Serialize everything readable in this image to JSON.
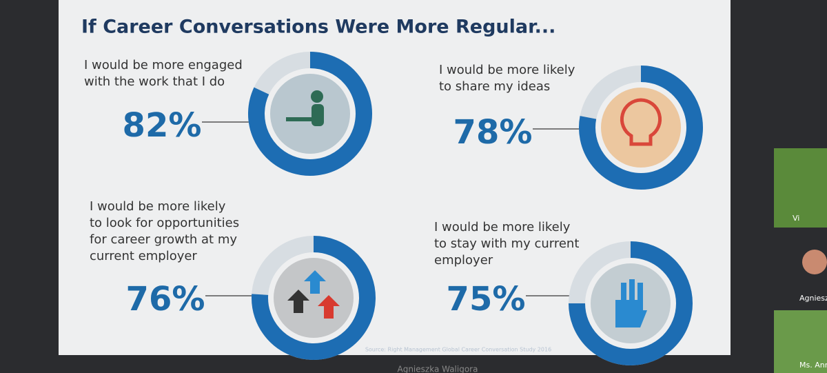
{
  "slide": {
    "title": "If Career Conversations Were More Regular...",
    "items": [
      {
        "lines": [
          "I would be more engaged",
          "with the work that I do"
        ],
        "percent": {
          "value": 82,
          "label": "82%"
        }
      },
      {
        "lines": [
          "I would be more likely",
          "to share my ideas"
        ],
        "percent": {
          "value": 78,
          "label": "78%"
        }
      },
      {
        "lines": [
          "I would be more likely",
          "to look for opportunities",
          "for career growth at my",
          "current employer"
        ],
        "percent": {
          "value": 76,
          "label": "76%"
        }
      },
      {
        "lines": [
          "I would be more likely",
          "to stay with my current",
          "employer"
        ],
        "percent": {
          "value": 75,
          "label": "75%"
        }
      }
    ],
    "source": "Source: Right Management Global Career Conversation Study 2016"
  },
  "call": {
    "presenter": "Agnieszka Waligora",
    "participants": [
      "Vi",
      "Agnieszk",
      "Ms. Annie Bro"
    ]
  }
}
